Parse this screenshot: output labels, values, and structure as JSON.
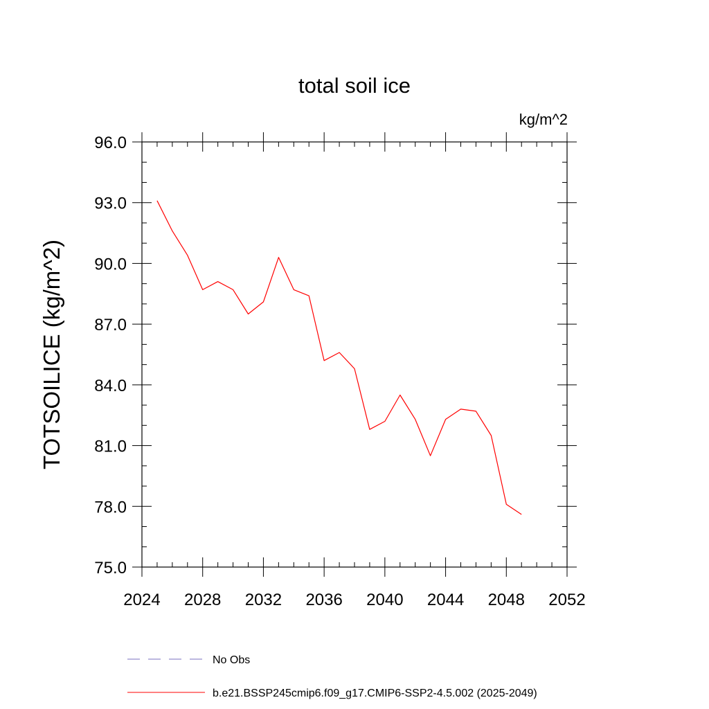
{
  "chart_data": {
    "type": "line",
    "title": "total soil ice",
    "units_label": "kg/m^2",
    "ylabel": "TOTSOILICE  (kg/m^2)",
    "xlabel": "",
    "xlim": [
      2024,
      2052
    ],
    "ylim": [
      75.0,
      96.0
    ],
    "x_ticks": [
      2024,
      2028,
      2032,
      2036,
      2040,
      2044,
      2048,
      2052
    ],
    "x_tick_labels": [
      "2024",
      "2028",
      "2032",
      "2036",
      "2040",
      "2044",
      "2048",
      "2052"
    ],
    "y_ticks": [
      75,
      78,
      81,
      84,
      87,
      90,
      93,
      96
    ],
    "y_tick_labels": [
      "75.0",
      "78.0",
      "81.0",
      "84.0",
      "87.0",
      "90.0",
      "93.0",
      "96.0"
    ],
    "grid": false,
    "series": [
      {
        "name": "b.e21.BSSP245cmip6.f09_g17.CMIP6-SSP2-4.5.002 (2025-2049)",
        "color": "#ff0000",
        "style": "solid",
        "x": [
          2025,
          2026,
          2027,
          2028,
          2029,
          2030,
          2031,
          2032,
          2033,
          2034,
          2035,
          2036,
          2037,
          2038,
          2039,
          2040,
          2041,
          2042,
          2043,
          2044,
          2045,
          2046,
          2047,
          2048,
          2049
        ],
        "y": [
          93.1,
          91.6,
          90.4,
          88.7,
          89.1,
          88.7,
          87.5,
          88.1,
          90.3,
          88.7,
          88.4,
          85.2,
          85.6,
          84.8,
          81.8,
          82.2,
          83.5,
          82.3,
          80.5,
          82.3,
          82.8,
          82.7,
          81.5,
          78.1,
          77.6
        ]
      }
    ],
    "legend": {
      "placement": "bottom",
      "entries": [
        {
          "label": "No Obs",
          "color": "#7a6fc0",
          "style": "dashed"
        },
        {
          "label": "b.e21.BSSP245cmip6.f09_g17.CMIP6-SSP2-4.5.002 (2025-2049)",
          "color": "#ff0000",
          "style": "solid"
        }
      ]
    }
  }
}
